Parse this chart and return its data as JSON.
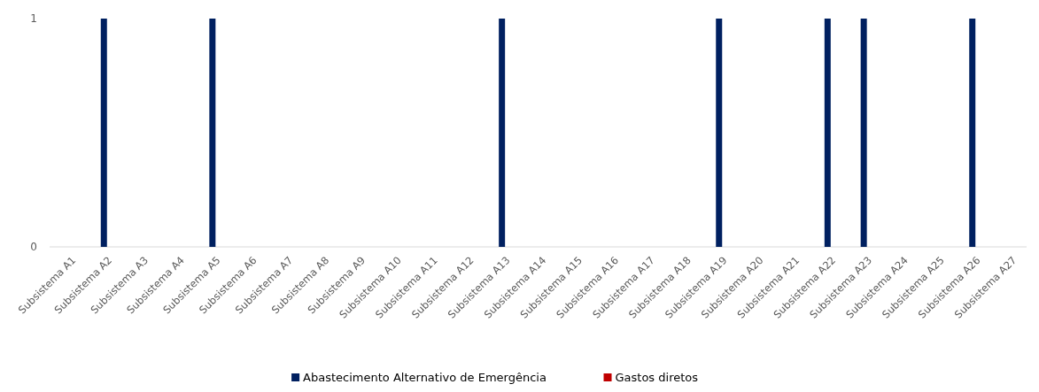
{
  "chart_data": {
    "type": "bar",
    "stacked": true,
    "categories": [
      "Subsistema A1",
      "Subsistema A2",
      "Subsistema A3",
      "Subsistema A4",
      "Subsistema A5",
      "Subsistema A6",
      "Subsistema A7",
      "Subsistema A8",
      "Subsistema A9",
      "Subsistema A10",
      "Subsistema A11",
      "Subsistema A12",
      "Subsistema A13",
      "Subsistema A14",
      "Subsistema A15",
      "Subsistema A16",
      "Subsistema A17",
      "Subsistema A18",
      "Subsistema A19",
      "Subsistema A20",
      "Subsistema A21",
      "Subsistema A22",
      "Subsistema A23",
      "Subsistema A24",
      "Subsistema A25",
      "Subsistema A26",
      "Subsistema A27"
    ],
    "series": [
      {
        "name": "Abastecimento Alternativo de Emergência",
        "color": "#002060",
        "values": [
          0,
          1,
          0,
          0,
          1,
          0,
          0,
          0,
          0,
          0,
          0,
          0,
          1,
          0,
          0,
          0,
          0,
          0,
          1,
          0,
          0,
          1,
          1,
          0,
          0,
          1,
          0
        ]
      },
      {
        "name": "Gastos diretos",
        "color": "#c00000",
        "values": [
          0,
          0,
          0,
          0,
          0,
          0,
          0,
          0,
          0,
          0,
          0,
          0,
          0,
          0,
          0,
          0,
          0,
          0,
          0,
          0,
          0,
          0,
          0,
          0,
          0,
          0,
          0
        ]
      }
    ],
    "ylim": [
      0,
      1
    ],
    "yticks": [
      0,
      1
    ],
    "grid": false,
    "legend": "bottom"
  }
}
